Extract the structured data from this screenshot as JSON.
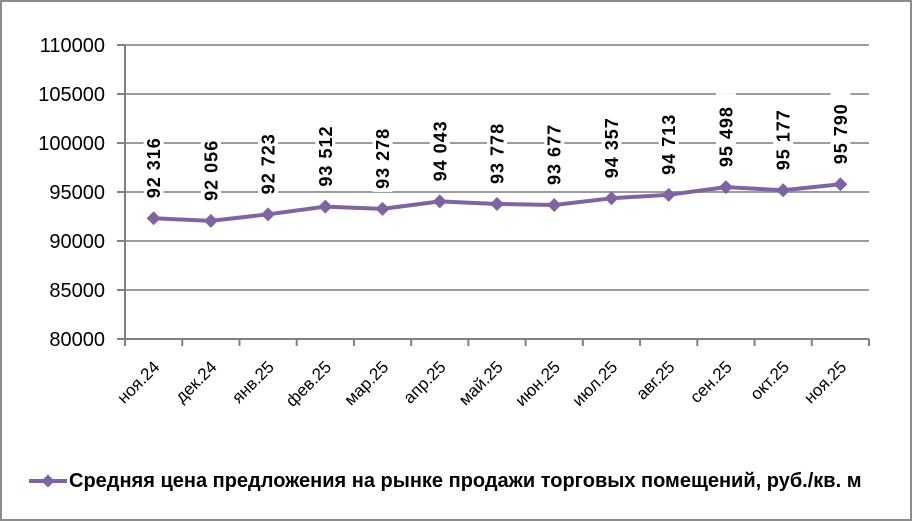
{
  "chart_data": {
    "type": "line",
    "title": "",
    "xlabel": "",
    "ylabel": "",
    "categories": [
      "ноя.24",
      "дек.24",
      "янв.25",
      "фев.25",
      "мар.25",
      "апр.25",
      "май.25",
      "июн.25",
      "июл.25",
      "авг.25",
      "сен.25",
      "окт.25",
      "ноя.25"
    ],
    "series": [
      {
        "name": "Средняя цена предложения на рынке продажи торговых помещений, руб./кв. м",
        "values": [
          92316,
          92056,
          92723,
          93512,
          93278,
          94043,
          93778,
          93677,
          94357,
          94713,
          95498,
          95177,
          95790
        ],
        "data_labels": [
          "92 316",
          "92 056",
          "92 723",
          "93 512",
          "93 278",
          "94 043",
          "93 778",
          "93 677",
          "94 357",
          "94 713",
          "95 498",
          "95 177",
          "95 790"
        ]
      }
    ],
    "ylim": [
      80000,
      110000
    ],
    "ytick_step": 5000,
    "ytick_labels": [
      "80000",
      "85000",
      "90000",
      "95000",
      "100000",
      "105000",
      "110000"
    ],
    "grid": true,
    "legend_position": "bottom-left",
    "marker": "diamond",
    "colors": {
      "series": "#8064A2",
      "grid": "#9c9c9c",
      "axis": "#808080",
      "text": "#000000",
      "label_background": "#ffffff"
    }
  }
}
